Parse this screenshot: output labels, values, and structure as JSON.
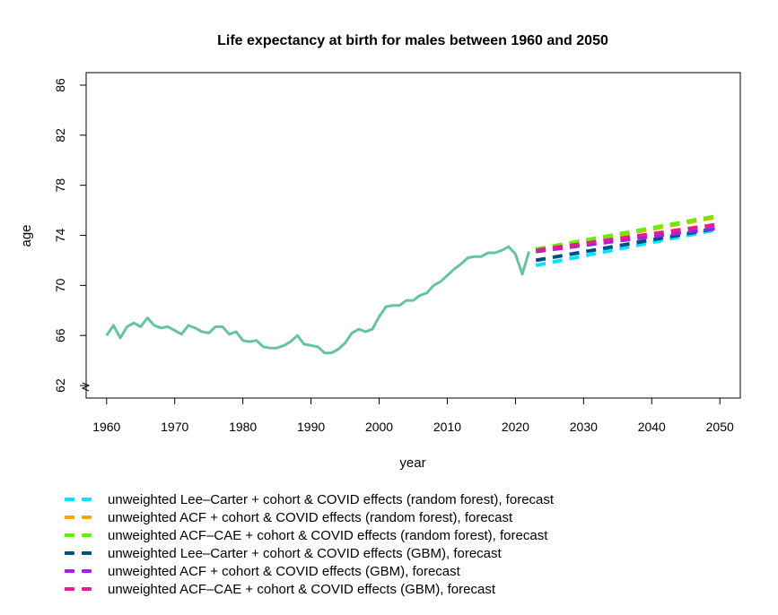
{
  "chart_data": {
    "type": "line",
    "title": "Life expectancy at birth for males between 1960 and 2050",
    "xlabel": "year",
    "ylabel": "age",
    "xlim": [
      1957,
      2053
    ],
    "ylim": [
      61,
      87
    ],
    "x_ticks": [
      1960,
      1970,
      1980,
      1990,
      2000,
      2010,
      2020,
      2030,
      2040,
      2050
    ],
    "y_ticks": [
      62,
      66,
      70,
      74,
      78,
      82,
      86
    ],
    "axis_break": "y-axis break below 62",
    "grid": false,
    "legend_position": "bottom-left",
    "series": [
      {
        "kind": "observed",
        "color": "#66c2a5",
        "x": [
          1960,
          1961,
          1962,
          1963,
          1964,
          1965,
          1966,
          1967,
          1968,
          1969,
          1970,
          1971,
          1972,
          1973,
          1974,
          1975,
          1976,
          1977,
          1978,
          1979,
          1980,
          1981,
          1982,
          1983,
          1984,
          1985,
          1986,
          1987,
          1988,
          1989,
          1990,
          1991,
          1992,
          1993,
          1994,
          1995,
          1996,
          1997,
          1998,
          1999,
          2000,
          2001,
          2002,
          2003,
          2004,
          2005,
          2006,
          2007,
          2008,
          2009,
          2010,
          2011,
          2012,
          2013,
          2014,
          2015,
          2016,
          2017,
          2018,
          2019,
          2020,
          2021,
          2022
        ],
        "y": [
          66.0,
          66.8,
          65.8,
          66.7,
          67.0,
          66.7,
          67.4,
          66.8,
          66.6,
          66.7,
          66.4,
          66.1,
          66.8,
          66.6,
          66.3,
          66.2,
          66.7,
          66.7,
          66.1,
          66.3,
          65.6,
          65.5,
          65.6,
          65.1,
          65.0,
          65.0,
          65.2,
          65.5,
          66.0,
          65.3,
          65.2,
          65.1,
          64.6,
          64.6,
          64.9,
          65.4,
          66.2,
          66.5,
          66.3,
          66.5,
          67.5,
          68.3,
          68.4,
          68.4,
          68.8,
          68.8,
          69.2,
          69.4,
          70.0,
          70.3,
          70.8,
          71.3,
          71.7,
          72.2,
          72.3,
          72.3,
          72.6,
          72.6,
          72.8,
          73.1,
          72.5,
          70.9,
          72.7
        ]
      },
      {
        "name": "unweighted Lee–Carter + cohort & COVID effects (random forest), forecast",
        "color": "#00e5ff",
        "x": [
          2023,
          2050
        ],
        "y": [
          71.6,
          74.5
        ]
      },
      {
        "name": "unweighted ACF + cohort & COVID effects (random forest), forecast",
        "color": "#ffa500",
        "x": [
          2023,
          2050
        ],
        "y": [
          72.8,
          75.5
        ]
      },
      {
        "name": "unweighted ACF–CAE + cohort & COVID effects (random forest), forecast",
        "color": "#66ee00",
        "x": [
          2023,
          2050
        ],
        "y": [
          72.9,
          75.6
        ]
      },
      {
        "name": "unweighted Lee–Carter + cohort & COVID effects (GBM), forecast",
        "color": "#004f7f",
        "x": [
          2023,
          2050
        ],
        "y": [
          72.0,
          74.6
        ]
      },
      {
        "name": "unweighted ACF + cohort & COVID effects (GBM), forecast",
        "color": "#a020f0",
        "x": [
          2023,
          2050
        ],
        "y": [
          72.7,
          74.6
        ]
      },
      {
        "name": "unweighted ACF–CAE + cohort & COVID effects (GBM), forecast",
        "color": "#e0208a",
        "x": [
          2023,
          2050
        ],
        "y": [
          72.8,
          74.9
        ]
      }
    ]
  }
}
